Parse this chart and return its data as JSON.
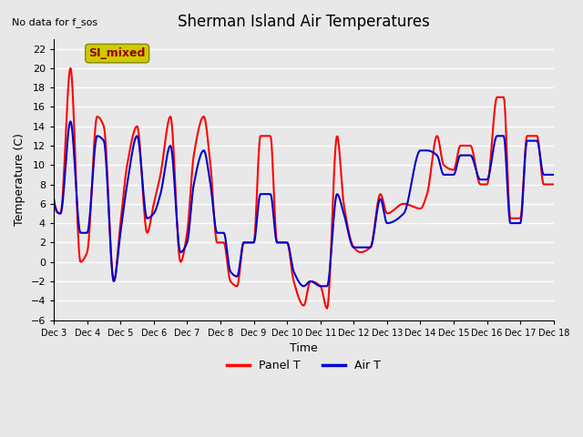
{
  "title": "Sherman Island Air Temperatures",
  "subtitle": "No data for f_sos",
  "xlabel": "Time",
  "ylabel": "Temperature (C)",
  "legend_label_box": "SI_mixed",
  "series_labels": [
    "Panel T",
    "Air T"
  ],
  "series_colors": [
    "#ff0000",
    "#0000cc"
  ],
  "ylim": [
    -6,
    23
  ],
  "yticks": [
    -6,
    -4,
    -2,
    0,
    2,
    4,
    6,
    8,
    10,
    12,
    14,
    16,
    18,
    20,
    22
  ],
  "xtick_labels": [
    "Dec 3",
    "Dec 4",
    "Dec 5",
    "Dec 6",
    "Dec 7",
    "Dec 8",
    "Dec 9",
    "Dec 10",
    "Dec 11",
    "Dec 12",
    "Dec 13",
    "Dec 14",
    "Dec 15",
    "Dec 16",
    "Dec 17",
    "Dec 18"
  ],
  "bg_color": "#e8e8e8",
  "plot_bg_color": "#e8e8e8",
  "grid_color": "#ffffff",
  "line_width": 1.5,
  "box_color": "#cccc00",
  "box_text_color": "#990000",
  "panel_t_x": [
    0.0,
    0.2,
    0.5,
    0.8,
    1.0,
    1.3,
    1.5,
    1.8,
    2.0,
    2.2,
    2.5,
    2.8,
    3.0,
    3.2,
    3.5,
    3.8,
    4.0,
    4.2,
    4.5,
    4.7,
    4.9,
    5.1,
    5.3,
    5.5,
    5.7,
    6.0,
    6.2,
    6.5,
    6.7,
    7.0,
    7.2,
    7.5,
    7.7,
    8.0,
    8.2,
    8.5,
    8.7,
    9.0,
    9.2,
    9.5,
    9.8,
    10.0,
    10.5,
    11.0,
    11.2,
    11.5,
    11.7,
    12.0,
    12.2,
    12.5,
    12.8,
    13.0,
    13.3,
    13.5,
    13.7,
    14.0,
    14.2,
    14.5,
    14.7,
    15.0
  ],
  "panel_t_y": [
    6,
    5,
    20,
    0,
    1,
    15,
    14,
    -2,
    4,
    10,
    14,
    3,
    6,
    9,
    15,
    0,
    3,
    11,
    15,
    10,
    2,
    2,
    -2,
    -2.5,
    2,
    2,
    13,
    13,
    2,
    2,
    -2,
    -4.5,
    -2,
    -2.5,
    -4.8,
    13,
    6,
    1.5,
    1,
    1.5,
    7,
    5,
    6,
    5.5,
    7,
    13,
    10,
    9.5,
    12,
    12,
    8,
    8,
    17,
    17,
    4.5,
    4.5,
    13,
    13,
    8,
    8
  ],
  "air_t_x": [
    0.0,
    0.2,
    0.5,
    0.8,
    1.0,
    1.3,
    1.5,
    1.8,
    2.0,
    2.2,
    2.5,
    2.8,
    3.0,
    3.2,
    3.5,
    3.8,
    4.0,
    4.2,
    4.5,
    4.7,
    4.9,
    5.1,
    5.3,
    5.5,
    5.7,
    6.0,
    6.2,
    6.5,
    6.7,
    7.0,
    7.2,
    7.5,
    7.7,
    8.0,
    8.2,
    8.5,
    8.7,
    9.0,
    9.2,
    9.5,
    9.8,
    10.0,
    10.5,
    11.0,
    11.2,
    11.5,
    11.7,
    12.0,
    12.2,
    12.5,
    12.8,
    13.0,
    13.3,
    13.5,
    13.7,
    14.0,
    14.2,
    14.5,
    14.7,
    15.0
  ],
  "air_t_y": [
    6.5,
    5,
    14.5,
    3,
    3,
    13,
    12.5,
    -2,
    3,
    8,
    13,
    4.5,
    5,
    7,
    12,
    1,
    2,
    8,
    11.5,
    8,
    3,
    3,
    -1,
    -1.5,
    2,
    2,
    7,
    7,
    2,
    2,
    -1,
    -2.5,
    -2,
    -2.5,
    -2.5,
    7,
    5,
    1.5,
    1.5,
    1.5,
    6.5,
    4,
    5,
    11.5,
    11.5,
    11,
    9,
    9,
    11,
    11,
    8.5,
    8.5,
    13,
    13,
    4,
    4,
    12.5,
    12.5,
    9,
    9
  ]
}
